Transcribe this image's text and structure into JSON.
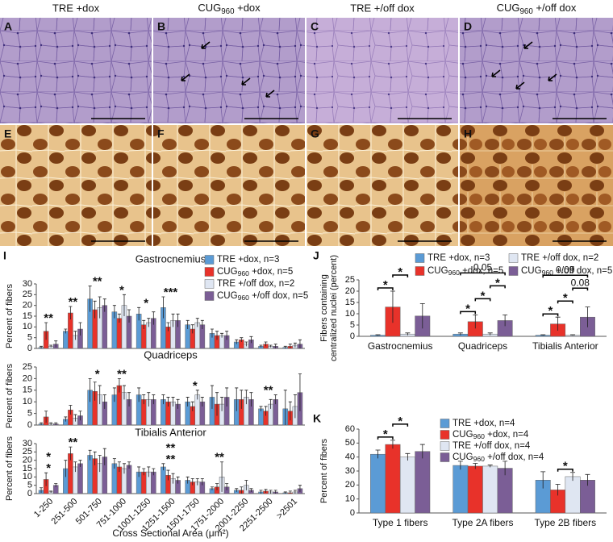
{
  "photos": {
    "columns": [
      "TRE +dox",
      "CUG960 +dox",
      "TRE +/off dox",
      "CUG960 +/off dox"
    ],
    "panels": [
      "A",
      "B",
      "C",
      "D",
      "E",
      "F",
      "G",
      "H"
    ]
  },
  "chart_data": [
    {
      "type": "bar",
      "panel": "I",
      "title": "Gastrocnemius",
      "ylabel": [
        "Percent of fibers"
      ],
      "categories": [
        null,
        null,
        null,
        null,
        null,
        null,
        null,
        null,
        null,
        null,
        null
      ],
      "ylim": [
        0,
        30
      ],
      "yticks": [
        0,
        5,
        10,
        15,
        20,
        25,
        30
      ],
      "grid": false,
      "legend": "upper right",
      "legend_columns": 1,
      "series": [
        {
          "name": "TRE +dox, n=3",
          "color": "#5b9bd5",
          "values": [
            0.5,
            8,
            23,
            17,
            16,
            19,
            11,
            7,
            3,
            1,
            0.5
          ],
          "errors": [
            0.5,
            1,
            6,
            3,
            3,
            5,
            2,
            2,
            1,
            0.5,
            0.5
          ]
        },
        {
          "name": "CUG960 +dox, n=5",
          "color": "#e8322a",
          "values": [
            8,
            16.5,
            18,
            14,
            11,
            10,
            9,
            6,
            4,
            2,
            1
          ],
          "errors": [
            4,
            3,
            4,
            2,
            2,
            2,
            2,
            2,
            1,
            1,
            1
          ]
        },
        {
          "name": "TRE +/off dox, n=2",
          "color": "#dfe6f2",
          "values": [
            1,
            6,
            19,
            20,
            12,
            13,
            12,
            6,
            2,
            1,
            1.5
          ],
          "errors": [
            0.5,
            2,
            5,
            5,
            2,
            3,
            2,
            1,
            1,
            0.5,
            1
          ]
        },
        {
          "name": "CUG960 +/off dox, n=5",
          "color": "#7b5e96",
          "values": [
            2,
            9,
            20,
            15,
            14,
            13,
            11,
            6,
            4,
            1,
            2
          ],
          "errors": [
            1.5,
            3,
            3,
            3,
            3,
            3,
            2,
            2,
            1.5,
            1,
            2
          ]
        }
      ],
      "annotations": [
        {
          "text": "**",
          "at": 0
        },
        {
          "text": "**",
          "at": 1
        },
        {
          "text": "**",
          "at": 2
        },
        {
          "text": "*",
          "at": 3
        },
        {
          "text": "*",
          "at": 4
        },
        {
          "text": "***",
          "at": 5
        }
      ]
    },
    {
      "type": "bar",
      "title": "Quadriceps",
      "ylabel": [
        "Percent of fibers"
      ],
      "categories": [
        null,
        null,
        null,
        null,
        null,
        null,
        null,
        null,
        null,
        null,
        null
      ],
      "ylim": [
        0,
        25
      ],
      "yticks": [
        0,
        5,
        10,
        15,
        20,
        25
      ],
      "grid": false,
      "series": [
        {
          "color": "#5b9bd5",
          "values": [
            0.5,
            2.5,
            15,
            13,
            13,
            11,
            10,
            12,
            11,
            7,
            7
          ],
          "errors": [
            0.5,
            1,
            5,
            3,
            3,
            2,
            2,
            5,
            5,
            1,
            8
          ]
        },
        {
          "color": "#e8322a",
          "values": [
            3.5,
            6.5,
            14.5,
            17,
            11,
            10,
            8,
            9,
            11,
            6,
            6
          ],
          "errors": [
            2.5,
            2,
            4,
            3,
            2,
            2,
            2,
            5,
            4,
            2,
            4
          ]
        },
        {
          "color": "#dfe6f2",
          "values": [
            0.5,
            3,
            13,
            14,
            11,
            10,
            13,
            9,
            12,
            9,
            8
          ],
          "errors": [
            0.5,
            1.5,
            4,
            3,
            3,
            2,
            2,
            3,
            3,
            2,
            5
          ]
        },
        {
          "color": "#7b5e96",
          "values": [
            0.5,
            4,
            10,
            11,
            11,
            9,
            10,
            12,
            11,
            11,
            14
          ],
          "errors": [
            0.5,
            2,
            3,
            3,
            2,
            2,
            2,
            4,
            3,
            2,
            8
          ]
        }
      ],
      "annotations": [
        {
          "text": "*",
          "at": 2
        },
        {
          "text": "**",
          "at": 3
        },
        {
          "text": "*",
          "at": 6
        },
        {
          "text": "**",
          "at": 9
        }
      ]
    },
    {
      "type": "bar",
      "title": "Tibialis Anterior",
      "ylabel": [
        "Percent of fibers"
      ],
      "xlabel": "Cross Sectional Area (μm²)",
      "categories": [
        "1-250",
        "251-500",
        "501-750",
        "751-1000",
        "1001-1250",
        "1251-1500",
        "1501-1750",
        "1751-2000",
        "2001-2250",
        "2251-2500",
        ">2501"
      ],
      "ylim": [
        0,
        30
      ],
      "yticks": [
        0,
        5,
        10,
        15,
        20,
        25,
        30
      ],
      "grid": false,
      "series": [
        {
          "color": "#5b9bd5",
          "values": [
            2,
            15,
            23,
            18,
            13,
            16,
            8,
            3,
            2,
            1,
            0.5
          ],
          "errors": [
            1.5,
            5,
            3,
            3,
            3,
            2,
            2,
            1,
            1,
            1,
            0.5
          ]
        },
        {
          "color": "#e8322a",
          "values": [
            8.5,
            24,
            21,
            16,
            13,
            11,
            7,
            4,
            2,
            1.5,
            0.5
          ],
          "errors": [
            4,
            4,
            4,
            3,
            2,
            3,
            2,
            2,
            2,
            1,
            1
          ]
        },
        {
          "color": "#dfe6f2",
          "values": [
            1,
            16,
            18,
            15,
            13,
            9,
            7,
            10,
            5,
            1,
            1
          ],
          "errors": [
            0.5,
            3,
            5,
            3,
            3,
            3,
            2,
            9,
            3,
            1,
            1
          ]
        },
        {
          "color": "#7b5e96",
          "values": [
            5,
            18,
            22,
            17,
            13,
            8,
            7,
            4,
            2,
            1,
            3
          ],
          "errors": [
            1,
            2,
            5,
            2,
            2,
            2,
            2,
            2,
            1,
            1,
            2
          ]
        }
      ],
      "annotations": [
        {
          "text": "*",
          "at": 0
        },
        {
          "text": "*",
          "at": 0
        },
        {
          "text": "**",
          "at": 1
        },
        {
          "text": "**",
          "at": 5
        },
        {
          "text": "**",
          "at": 5
        },
        {
          "text": "**",
          "at": 7
        }
      ]
    },
    {
      "type": "bar",
      "panel": "J",
      "ylabel": [
        "Fibers containing",
        "centralized nuclei (percent)"
      ],
      "categories": [
        "Gastrocnemius",
        "Quadriceps",
        "Tibialis Anterior"
      ],
      "ylim": [
        0,
        25
      ],
      "yticks": [
        0,
        5,
        10,
        15,
        20,
        25
      ],
      "grid": false,
      "legend": "upper right",
      "legend_columns": 2,
      "series": [
        {
          "name": "TRE +dox, n=3",
          "color": "#5b9bd5",
          "values": [
            0.5,
            1,
            0.5
          ],
          "errors": [
            0.2,
            0.5,
            0.2
          ]
        },
        {
          "name": "CUG960 +dox, n=5",
          "color": "#e8322a",
          "values": [
            13,
            6.5,
            5.5
          ],
          "errors": [
            7,
            3,
            3
          ]
        },
        {
          "name": "TRE +/off dox, n=2",
          "color": "#dfe6f2",
          "values": [
            1,
            1,
            0.5
          ],
          "errors": [
            0.5,
            0.5,
            0.2
          ]
        },
        {
          "name": "CUG960 +/off dox, n=5",
          "color": "#7b5e96",
          "values": [
            9,
            7,
            8.5
          ],
          "errors": [
            5.5,
            2.5,
            4.5
          ]
        }
      ],
      "annotations": [
        {
          "text": "*",
          "at": 0,
          "from": 0,
          "to": 1
        },
        {
          "text": "*",
          "at": 0,
          "from": 1,
          "to": 2
        },
        {
          "text": "*",
          "at": 1,
          "from": 0,
          "to": 1
        },
        {
          "text": "*",
          "at": 1,
          "from": 1,
          "to": 2
        },
        {
          "text": "*",
          "at": 1,
          "from": 2,
          "to": 3
        },
        {
          "text": "0.05",
          "at": 1,
          "from": 0,
          "to": 3
        },
        {
          "text": "*",
          "at": 2,
          "from": 0,
          "to": 1
        },
        {
          "text": "*",
          "at": 2,
          "from": 1,
          "to": 2
        },
        {
          "text": "0.08",
          "at": 2,
          "from": 2,
          "to": 3
        },
        {
          "text": "0.09",
          "at": 2,
          "from": 0,
          "to": 3
        }
      ]
    },
    {
      "type": "bar",
      "panel": "K",
      "ylabel": [
        "Percent of fibers"
      ],
      "categories": [
        "Type 1 fibers",
        "Type 2A fibers",
        "Type 2B fibers"
      ],
      "ylim": [
        0,
        60
      ],
      "yticks": [
        0,
        10,
        20,
        30,
        40,
        50,
        60
      ],
      "grid": false,
      "legend": "upper right",
      "legend_columns": 1,
      "series": [
        {
          "name": "TRE +dox, n=4",
          "color": "#5b9bd5",
          "values": [
            42,
            34,
            23.5
          ],
          "errors": [
            3,
            3,
            6
          ]
        },
        {
          "name": "CUG960 +dox, n=4",
          "color": "#e8322a",
          "values": [
            49,
            33.5,
            16.5
          ],
          "errors": [
            3,
            2,
            4
          ]
        },
        {
          "name": "TRE +/off dox, n=4",
          "color": "#dfe6f2",
          "values": [
            40,
            33.5,
            26
          ],
          "errors": [
            2.5,
            0.8,
            3
          ]
        },
        {
          "name": "CUG960 +/off dox, n=4",
          "color": "#7b5e96",
          "values": [
            44,
            32,
            23.5
          ],
          "errors": [
            5,
            5,
            4
          ]
        }
      ],
      "annotations": [
        {
          "text": "*",
          "at": 0,
          "from": 0,
          "to": 1
        },
        {
          "text": "*",
          "at": 0,
          "from": 1,
          "to": 2
        },
        {
          "text": "*",
          "at": 2,
          "from": 1,
          "to": 2
        }
      ]
    }
  ]
}
